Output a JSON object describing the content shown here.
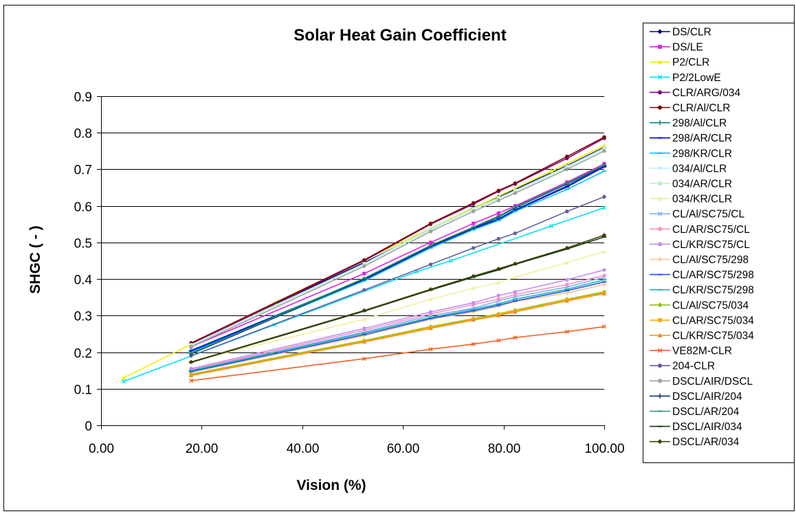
{
  "chart_data": {
    "type": "line",
    "title": "Solar Heat Gain Coefficient",
    "xlabel": "Vision (%)",
    "ylabel": "SHGC ( - )",
    "xlim": [
      0,
      100
    ],
    "ylim": [
      0,
      0.9
    ],
    "x_ticks": [
      0,
      20,
      40,
      60,
      80,
      100
    ],
    "x_tick_labels": [
      "0.00",
      "20.00",
      "40.00",
      "60.00",
      "80.00",
      "100.00"
    ],
    "y_ticks": [
      0,
      0.1,
      0.2,
      0.3,
      0.4,
      0.5,
      0.6,
      0.7,
      0.8,
      0.9
    ],
    "y_tick_labels": [
      "0",
      "0.1",
      "0.2",
      "0.3",
      "0.4",
      "0.5",
      "0.6",
      "0.7",
      "0.8",
      "0.9"
    ],
    "grid": "horizontal",
    "legend_position": "right",
    "series": [
      {
        "name": "DS/CLR",
        "color": "#000080",
        "marker": "diamond",
        "points": [
          [
            17.9,
            0.225
          ],
          [
            52.3,
            0.445
          ],
          [
            65.5,
            0.535
          ],
          [
            74,
            0.595
          ],
          [
            79,
            0.625
          ],
          [
            82.3,
            0.645
          ],
          [
            92.6,
            0.71
          ],
          [
            100,
            0.76
          ]
        ]
      },
      {
        "name": "DS/LE",
        "color": "#e020e0",
        "marker": "square",
        "points": [
          [
            17.9,
            0.215
          ],
          [
            52.3,
            0.415
          ],
          [
            65.5,
            0.5
          ],
          [
            74,
            0.552
          ],
          [
            79,
            0.58
          ],
          [
            82.3,
            0.6
          ],
          [
            92.6,
            0.665
          ],
          [
            100,
            0.715
          ]
        ]
      },
      {
        "name": "P2/CLR",
        "color": "#f0f000",
        "marker": "triangle",
        "points": [
          [
            4.5,
            0.13
          ],
          [
            34.5,
            0.335
          ],
          [
            62.7,
            0.52
          ],
          [
            69.5,
            0.565
          ],
          [
            89.5,
            0.695
          ],
          [
            100,
            0.765
          ]
        ]
      },
      {
        "name": "P2/2LowE",
        "color": "#00e0f0",
        "marker": "x",
        "points": [
          [
            4.5,
            0.12
          ],
          [
            34.5,
            0.275
          ],
          [
            62.7,
            0.42
          ],
          [
            69.5,
            0.45
          ],
          [
            89.5,
            0.545
          ],
          [
            100,
            0.595
          ]
        ]
      },
      {
        "name": "CLR/ARG/034",
        "color": "#800080",
        "marker": "circle",
        "points": [
          [
            17.9,
            0.222
          ],
          [
            52.3,
            0.45
          ],
          [
            65.5,
            0.55
          ],
          [
            74,
            0.605
          ],
          [
            79,
            0.64
          ],
          [
            82.3,
            0.66
          ],
          [
            92.6,
            0.73
          ],
          [
            100,
            0.785
          ]
        ]
      },
      {
        "name": "CLR/Al/CLR",
        "color": "#800000",
        "marker": "circle",
        "points": [
          [
            17.9,
            0.225
          ],
          [
            52.3,
            0.452
          ],
          [
            65.5,
            0.552
          ],
          [
            74,
            0.608
          ],
          [
            79,
            0.642
          ],
          [
            82.3,
            0.662
          ],
          [
            92.6,
            0.735
          ],
          [
            100,
            0.788
          ]
        ]
      },
      {
        "name": "298/Al/CLR",
        "color": "#008080",
        "marker": "plus",
        "points": [
          [
            17.9,
            0.205
          ],
          [
            52.3,
            0.4
          ],
          [
            65.5,
            0.49
          ],
          [
            74,
            0.54
          ],
          [
            79,
            0.565
          ],
          [
            82.3,
            0.59
          ],
          [
            92.6,
            0.655
          ],
          [
            100,
            0.71
          ]
        ]
      },
      {
        "name": "298/AR/CLR",
        "color": "#0000ff",
        "marker": "dash",
        "points": [
          [
            17.9,
            0.203
          ],
          [
            52.3,
            0.398
          ],
          [
            65.5,
            0.488
          ],
          [
            74,
            0.538
          ],
          [
            79,
            0.563
          ],
          [
            82.3,
            0.588
          ],
          [
            92.6,
            0.652
          ],
          [
            100,
            0.707
          ]
        ]
      },
      {
        "name": "298/KR/CLR",
        "color": "#00c0f0",
        "marker": "dash",
        "points": [
          [
            17.9,
            0.2
          ],
          [
            52.3,
            0.395
          ],
          [
            65.5,
            0.485
          ],
          [
            74,
            0.535
          ],
          [
            79,
            0.56
          ],
          [
            82.3,
            0.585
          ],
          [
            92.6,
            0.645
          ],
          [
            100,
            0.695
          ]
        ]
      },
      {
        "name": "034/Al/CLR",
        "color": "#c0f0ff",
        "marker": "diamond",
        "points": [
          [
            17.9,
            0.218
          ],
          [
            52.3,
            0.44
          ],
          [
            65.5,
            0.535
          ],
          [
            74,
            0.59
          ],
          [
            79,
            0.62
          ],
          [
            82.3,
            0.64
          ],
          [
            92.6,
            0.705
          ],
          [
            100,
            0.755
          ]
        ]
      },
      {
        "name": "034/AR/CLR",
        "color": "#c0f0c0",
        "marker": "square",
        "points": [
          [
            17.9,
            0.22
          ],
          [
            52.3,
            0.442
          ],
          [
            65.5,
            0.538
          ],
          [
            74,
            0.592
          ],
          [
            79,
            0.622
          ],
          [
            82.3,
            0.642
          ],
          [
            92.6,
            0.708
          ],
          [
            100,
            0.758
          ]
        ]
      },
      {
        "name": "034/KR/CLR",
        "color": "#f0f0a0",
        "marker": "triangle",
        "points": [
          [
            17.9,
            0.175
          ],
          [
            52.3,
            0.29
          ],
          [
            65.5,
            0.345
          ],
          [
            74,
            0.375
          ],
          [
            79,
            0.39
          ],
          [
            82.3,
            0.405
          ],
          [
            92.6,
            0.445
          ],
          [
            100,
            0.475
          ]
        ]
      },
      {
        "name": "CL/Al/SC75/CL",
        "color": "#80b0ff",
        "marker": "x",
        "points": [
          [
            17.9,
            0.15
          ],
          [
            52.3,
            0.255
          ],
          [
            65.5,
            0.3
          ],
          [
            74,
            0.32
          ],
          [
            79,
            0.34
          ],
          [
            82.3,
            0.352
          ],
          [
            92.6,
            0.378
          ],
          [
            100,
            0.405
          ]
        ]
      },
      {
        "name": "CL/AR/SC75/CL",
        "color": "#ff90c0",
        "marker": "circle",
        "points": [
          [
            17.9,
            0.152
          ],
          [
            52.3,
            0.26
          ],
          [
            65.5,
            0.305
          ],
          [
            74,
            0.33
          ],
          [
            79,
            0.345
          ],
          [
            82.3,
            0.358
          ],
          [
            92.6,
            0.385
          ],
          [
            100,
            0.41
          ]
        ]
      },
      {
        "name": "CL/KR/SC75/CL",
        "color": "#c090f0",
        "marker": "circle",
        "points": [
          [
            17.9,
            0.155
          ],
          [
            52.3,
            0.265
          ],
          [
            65.5,
            0.31
          ],
          [
            74,
            0.335
          ],
          [
            79,
            0.355
          ],
          [
            82.3,
            0.365
          ],
          [
            92.6,
            0.398
          ],
          [
            100,
            0.425
          ]
        ]
      },
      {
        "name": "CL/Al/SC75/298",
        "color": "#f0c0a0",
        "marker": "plus",
        "points": [
          [
            17.9,
            0.145
          ],
          [
            52.3,
            0.245
          ],
          [
            65.5,
            0.29
          ],
          [
            74,
            0.31
          ],
          [
            79,
            0.325
          ],
          [
            82.3,
            0.338
          ],
          [
            92.6,
            0.362
          ],
          [
            100,
            0.385
          ]
        ]
      },
      {
        "name": "CL/AR/SC75/298",
        "color": "#2050e0",
        "marker": "dash",
        "points": [
          [
            17.9,
            0.147
          ],
          [
            52.3,
            0.248
          ],
          [
            65.5,
            0.292
          ],
          [
            74,
            0.313
          ],
          [
            79,
            0.328
          ],
          [
            82.3,
            0.34
          ],
          [
            92.6,
            0.368
          ],
          [
            100,
            0.392
          ]
        ]
      },
      {
        "name": "CL/KR/SC75/298",
        "color": "#20b0b0",
        "marker": "dash",
        "points": [
          [
            17.9,
            0.15
          ],
          [
            52.3,
            0.252
          ],
          [
            65.5,
            0.295
          ],
          [
            74,
            0.317
          ],
          [
            79,
            0.332
          ],
          [
            82.3,
            0.345
          ],
          [
            92.6,
            0.372
          ],
          [
            100,
            0.398
          ]
        ]
      },
      {
        "name": "CL/Al/SC75/034",
        "color": "#90c020",
        "marker": "diamond",
        "points": [
          [
            17.9,
            0.14
          ],
          [
            52.3,
            0.232
          ],
          [
            65.5,
            0.27
          ],
          [
            74,
            0.292
          ],
          [
            79,
            0.305
          ],
          [
            82.3,
            0.315
          ],
          [
            92.6,
            0.345
          ],
          [
            100,
            0.365
          ]
        ]
      },
      {
        "name": "CL/AR/SC75/034",
        "color": "#f0b000",
        "marker": "square",
        "points": [
          [
            17.9,
            0.138
          ],
          [
            52.3,
            0.23
          ],
          [
            65.5,
            0.268
          ],
          [
            74,
            0.29
          ],
          [
            79,
            0.303
          ],
          [
            82.3,
            0.313
          ],
          [
            92.6,
            0.343
          ],
          [
            100,
            0.362
          ]
        ]
      },
      {
        "name": "CL/KR/SC75/034",
        "color": "#f09020",
        "marker": "triangle",
        "points": [
          [
            17.9,
            0.136
          ],
          [
            52.3,
            0.228
          ],
          [
            65.5,
            0.265
          ],
          [
            74,
            0.288
          ],
          [
            79,
            0.3
          ],
          [
            82.3,
            0.31
          ],
          [
            92.6,
            0.34
          ],
          [
            100,
            0.36
          ]
        ]
      },
      {
        "name": "VE82M-CLR",
        "color": "#f06020",
        "marker": "x",
        "points": [
          [
            17.9,
            0.122
          ],
          [
            52.3,
            0.182
          ],
          [
            65.5,
            0.208
          ],
          [
            74,
            0.222
          ],
          [
            79,
            0.232
          ],
          [
            82.3,
            0.24
          ],
          [
            92.6,
            0.256
          ],
          [
            100,
            0.27
          ]
        ]
      },
      {
        "name": "204-CLR",
        "color": "#6060a0",
        "marker": "circle",
        "points": [
          [
            17.9,
            0.19
          ],
          [
            52.3,
            0.37
          ],
          [
            65.5,
            0.44
          ],
          [
            74,
            0.485
          ],
          [
            79,
            0.51
          ],
          [
            82.3,
            0.525
          ],
          [
            92.6,
            0.585
          ],
          [
            100,
            0.625
          ]
        ]
      },
      {
        "name": "DSCL/AIR/DSCL",
        "color": "#a0a0a0",
        "marker": "circle",
        "points": [
          [
            17.9,
            0.215
          ],
          [
            52.3,
            0.435
          ],
          [
            65.5,
            0.53
          ],
          [
            74,
            0.585
          ],
          [
            79,
            0.615
          ],
          [
            82.3,
            0.635
          ],
          [
            92.6,
            0.7
          ],
          [
            100,
            0.75
          ]
        ]
      },
      {
        "name": "DSCL/AIR/204",
        "color": "#103070",
        "marker": "plus",
        "points": [
          [
            17.9,
            0.195
          ],
          [
            52.3,
            0.4
          ],
          [
            65.5,
            0.49
          ],
          [
            74,
            0.54
          ],
          [
            79,
            0.57
          ],
          [
            82.3,
            0.595
          ],
          [
            92.6,
            0.66
          ],
          [
            100,
            0.71
          ]
        ]
      },
      {
        "name": "DSCL/AR/204",
        "color": "#309070",
        "marker": "dash",
        "points": [
          [
            17.9,
            0.197
          ],
          [
            52.3,
            0.402
          ],
          [
            65.5,
            0.492
          ],
          [
            74,
            0.542
          ],
          [
            79,
            0.572
          ],
          [
            82.3,
            0.597
          ],
          [
            92.6,
            0.662
          ],
          [
            100,
            0.712
          ]
        ]
      },
      {
        "name": "DSCL/AIR/034",
        "color": "#104010",
        "marker": "dash",
        "points": [
          [
            17.9,
            0.172
          ],
          [
            52.3,
            0.312
          ],
          [
            65.5,
            0.37
          ],
          [
            74,
            0.405
          ],
          [
            79,
            0.425
          ],
          [
            82.3,
            0.44
          ],
          [
            92.6,
            0.482
          ],
          [
            100,
            0.515
          ]
        ]
      },
      {
        "name": "DSCL/AR/034",
        "color": "#404000",
        "marker": "diamond",
        "points": [
          [
            17.9,
            0.173
          ],
          [
            52.3,
            0.314
          ],
          [
            65.5,
            0.372
          ],
          [
            74,
            0.408
          ],
          [
            79,
            0.428
          ],
          [
            82.3,
            0.442
          ],
          [
            92.6,
            0.485
          ],
          [
            100,
            0.52
          ]
        ]
      }
    ]
  }
}
